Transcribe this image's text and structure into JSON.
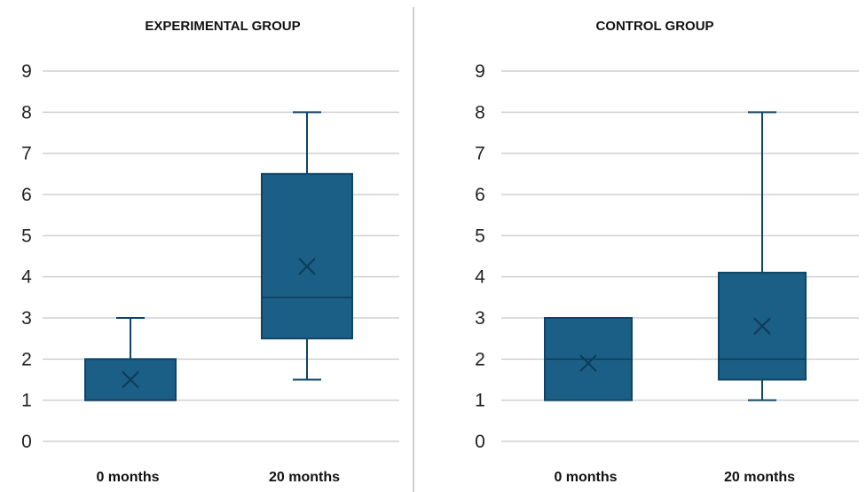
{
  "chart_data": [
    {
      "type": "box",
      "title": "EXPERIMENTAL GROUP",
      "xlabel": "",
      "ylabel": "",
      "ylim": [
        0,
        9
      ],
      "yticks": [
        "0",
        "1",
        "2",
        "3",
        "4",
        "5",
        "6",
        "7",
        "8",
        "9"
      ],
      "grid": true,
      "categories": [
        "0 months",
        "20 months"
      ],
      "boxes": [
        {
          "category": "0 months",
          "min": 1,
          "q1": 1,
          "median": 1,
          "q3": 2,
          "max": 3,
          "mean": 1.5
        },
        {
          "category": "20 months",
          "min": 1.5,
          "q1": 2.5,
          "median": 3.5,
          "q3": 6.5,
          "max": 8,
          "mean": 4.25
        }
      ]
    },
    {
      "type": "box",
      "title": "CONTROL GROUP",
      "xlabel": "",
      "ylabel": "",
      "ylim": [
        0,
        9
      ],
      "yticks": [
        "0",
        "1",
        "2",
        "3",
        "4",
        "5",
        "6",
        "7",
        "8",
        "9"
      ],
      "grid": true,
      "categories": [
        "0 months",
        "20 months"
      ],
      "boxes": [
        {
          "category": "0 months",
          "min": 1,
          "q1": 1,
          "median": 2,
          "q3": 3,
          "max": 3,
          "mean": 1.9
        },
        {
          "category": "20 months",
          "min": 1,
          "q1": 1.5,
          "median": 2,
          "q3": 4.1,
          "max": 8,
          "mean": 2.8
        }
      ]
    }
  ],
  "colors": {
    "box_fill": "#1b5f86",
    "box_stroke": "#0f4466",
    "marker": "#0f3a58",
    "grid": "#d0d0d0",
    "divider": "#cfcfcf"
  }
}
